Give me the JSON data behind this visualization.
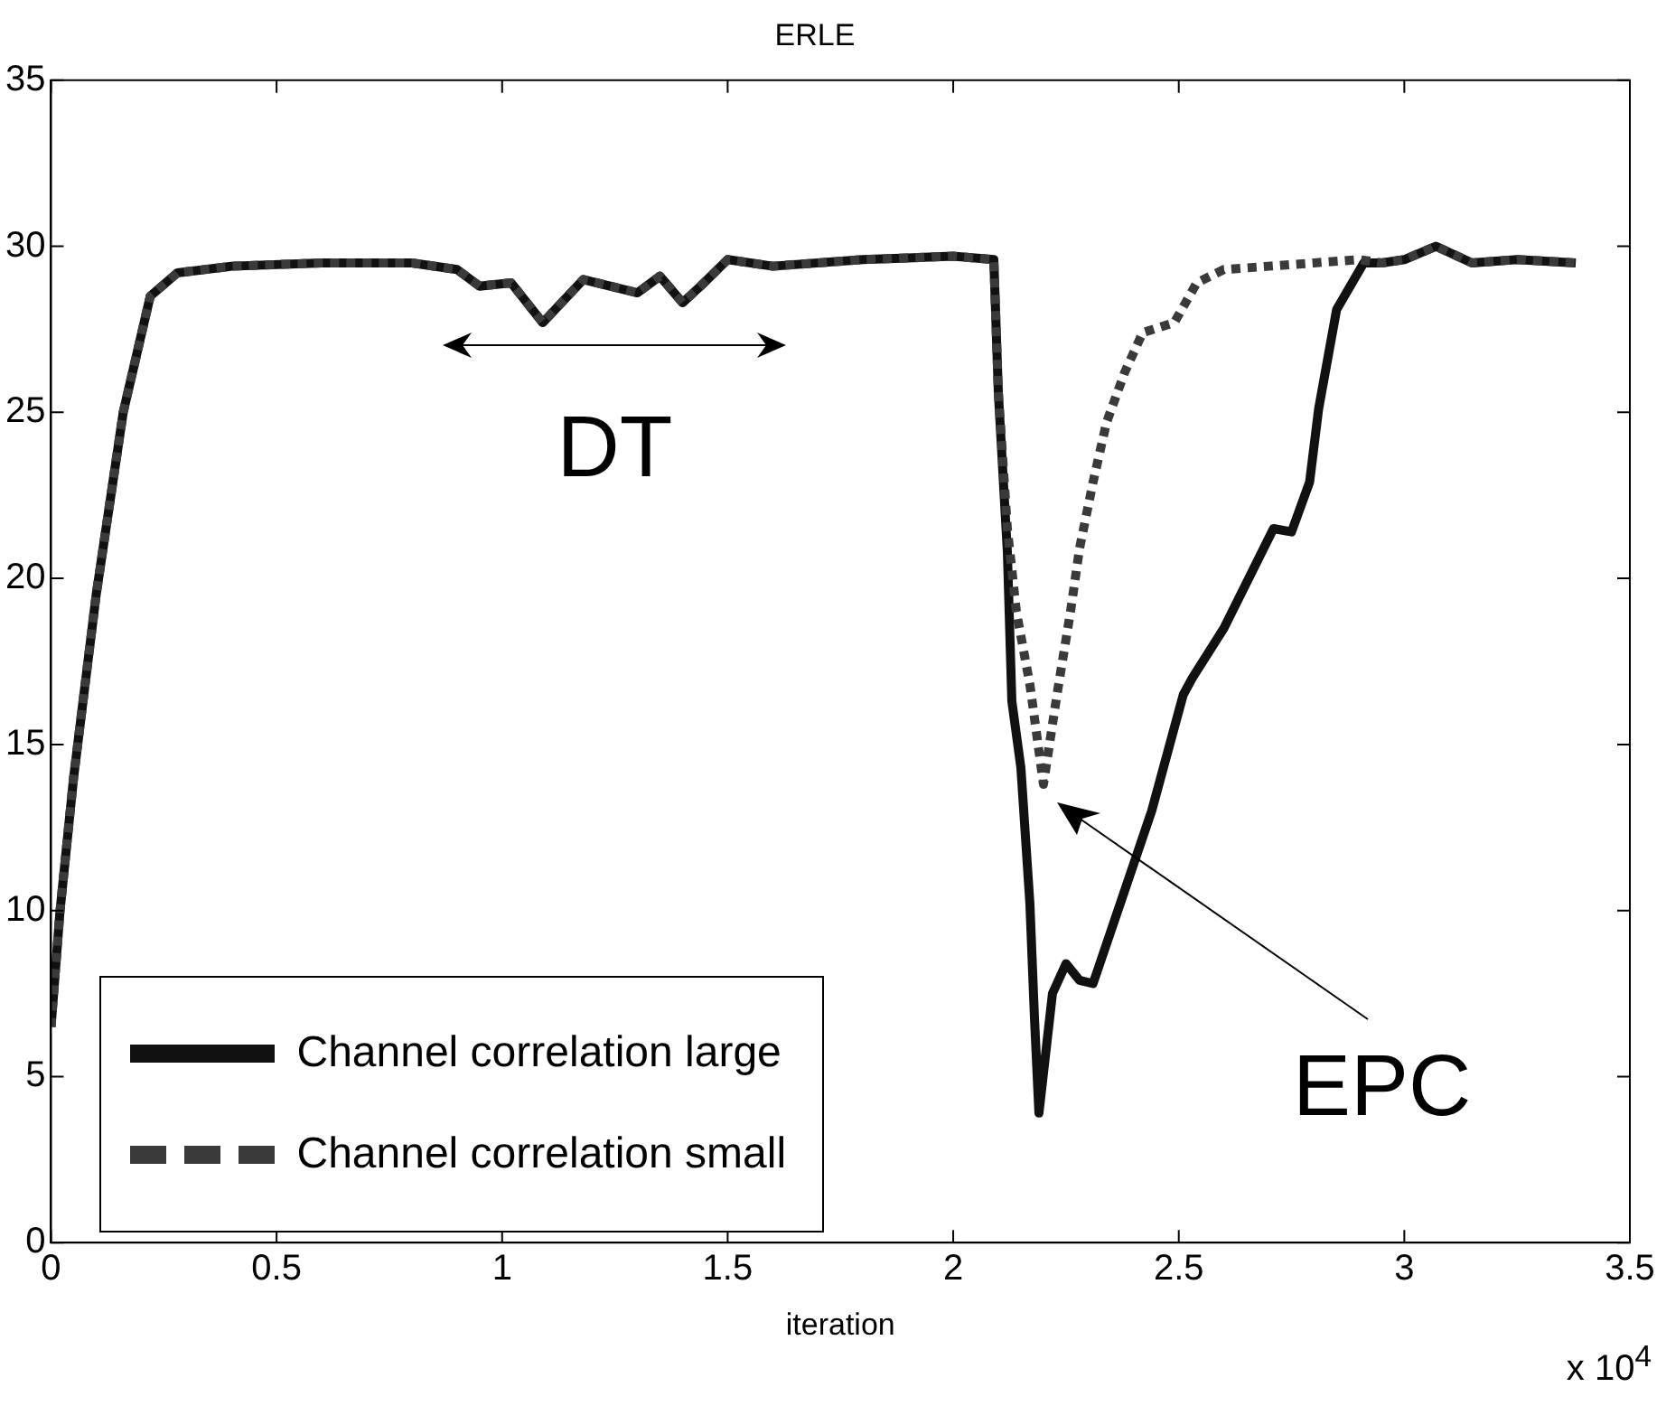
{
  "chart_data": {
    "type": "line",
    "title": "ERLE",
    "xlabel": "iteration",
    "xlim": [
      0,
      3.5
    ],
    "xticks": [
      0,
      0.5,
      1,
      1.5,
      2,
      2.5,
      3,
      3.5
    ],
    "ylim": [
      0,
      35
    ],
    "yticks": [
      0,
      5,
      10,
      15,
      20,
      25,
      30,
      35
    ],
    "grid": false,
    "legend": "bottom left",
    "marker": "none",
    "annotations": [
      "DT",
      "EPC",
      "x 10$^{4}$"
    ],
    "series": [
      {
        "name": "Channel correlation large",
        "color": "#111111",
        "line_style": "solid",
        "x": [
          0,
          0.02,
          0.05,
          0.1,
          0.16,
          0.22,
          0.28,
          0.4,
          0.6,
          0.8,
          0.9,
          0.95,
          1.02,
          1.09,
          1.18,
          1.3,
          1.35,
          1.4,
          1.44,
          1.5,
          1.6,
          1.8,
          2.0,
          2.09,
          2.1,
          2.12,
          2.13,
          2.15,
          2.17,
          2.18,
          2.19,
          2.22,
          2.25,
          2.28,
          2.31,
          2.37,
          2.44,
          2.51,
          2.53,
          2.6,
          2.71,
          2.75,
          2.79,
          2.81,
          2.85,
          2.91,
          2.95,
          3.0,
          3.07,
          3.15,
          3.25,
          3.38
        ],
        "values": [
          6.5,
          10,
          14,
          19.5,
          25,
          28.5,
          29.2,
          29.4,
          29.5,
          29.5,
          29.3,
          28.8,
          28.9,
          27.7,
          29,
          28.6,
          29.1,
          28.3,
          28.8,
          29.6,
          29.4,
          29.6,
          29.7,
          29.6,
          25.6,
          20.8,
          16.3,
          14.3,
          10.2,
          6.8,
          3.9,
          7.5,
          8.4,
          7.9,
          7.8,
          10.2,
          13,
          16.5,
          17,
          18.5,
          21.5,
          21.4,
          22.9,
          25.1,
          28.1,
          29.5,
          29.5,
          29.6,
          30,
          29.5,
          29.6,
          29.5
        ]
      },
      {
        "name": "Channel correlation small",
        "color": "#3a3a3a",
        "line_style": "dashed",
        "x": [
          0,
          0.02,
          0.05,
          0.1,
          0.16,
          0.22,
          0.28,
          0.4,
          0.6,
          0.8,
          0.9,
          0.95,
          1.02,
          1.09,
          1.18,
          1.3,
          1.35,
          1.4,
          1.44,
          1.5,
          1.6,
          1.8,
          2.0,
          2.09,
          2.1,
          2.12,
          2.14,
          2.17,
          2.2,
          2.23,
          2.26,
          2.28,
          2.31,
          2.34,
          2.38,
          2.42,
          2.49,
          2.54,
          2.6,
          2.7,
          2.8,
          2.9,
          2.95,
          3.0,
          3.07,
          3.15,
          3.25,
          3.38
        ],
        "values": [
          6.5,
          10,
          14,
          19.5,
          25,
          28.5,
          29.2,
          29.4,
          29.5,
          29.5,
          29.3,
          28.8,
          28.9,
          27.7,
          29,
          28.6,
          29.1,
          28.3,
          28.8,
          29.6,
          29.4,
          29.6,
          29.7,
          29.6,
          25.6,
          21.5,
          19,
          16.8,
          13.8,
          16.5,
          19,
          20.9,
          22.9,
          24.7,
          26.2,
          27.4,
          27.7,
          28.9,
          29.3,
          29.4,
          29.5,
          29.6,
          29.5,
          29.6,
          30,
          29.5,
          29.6,
          29.5
        ]
      }
    ]
  }
}
